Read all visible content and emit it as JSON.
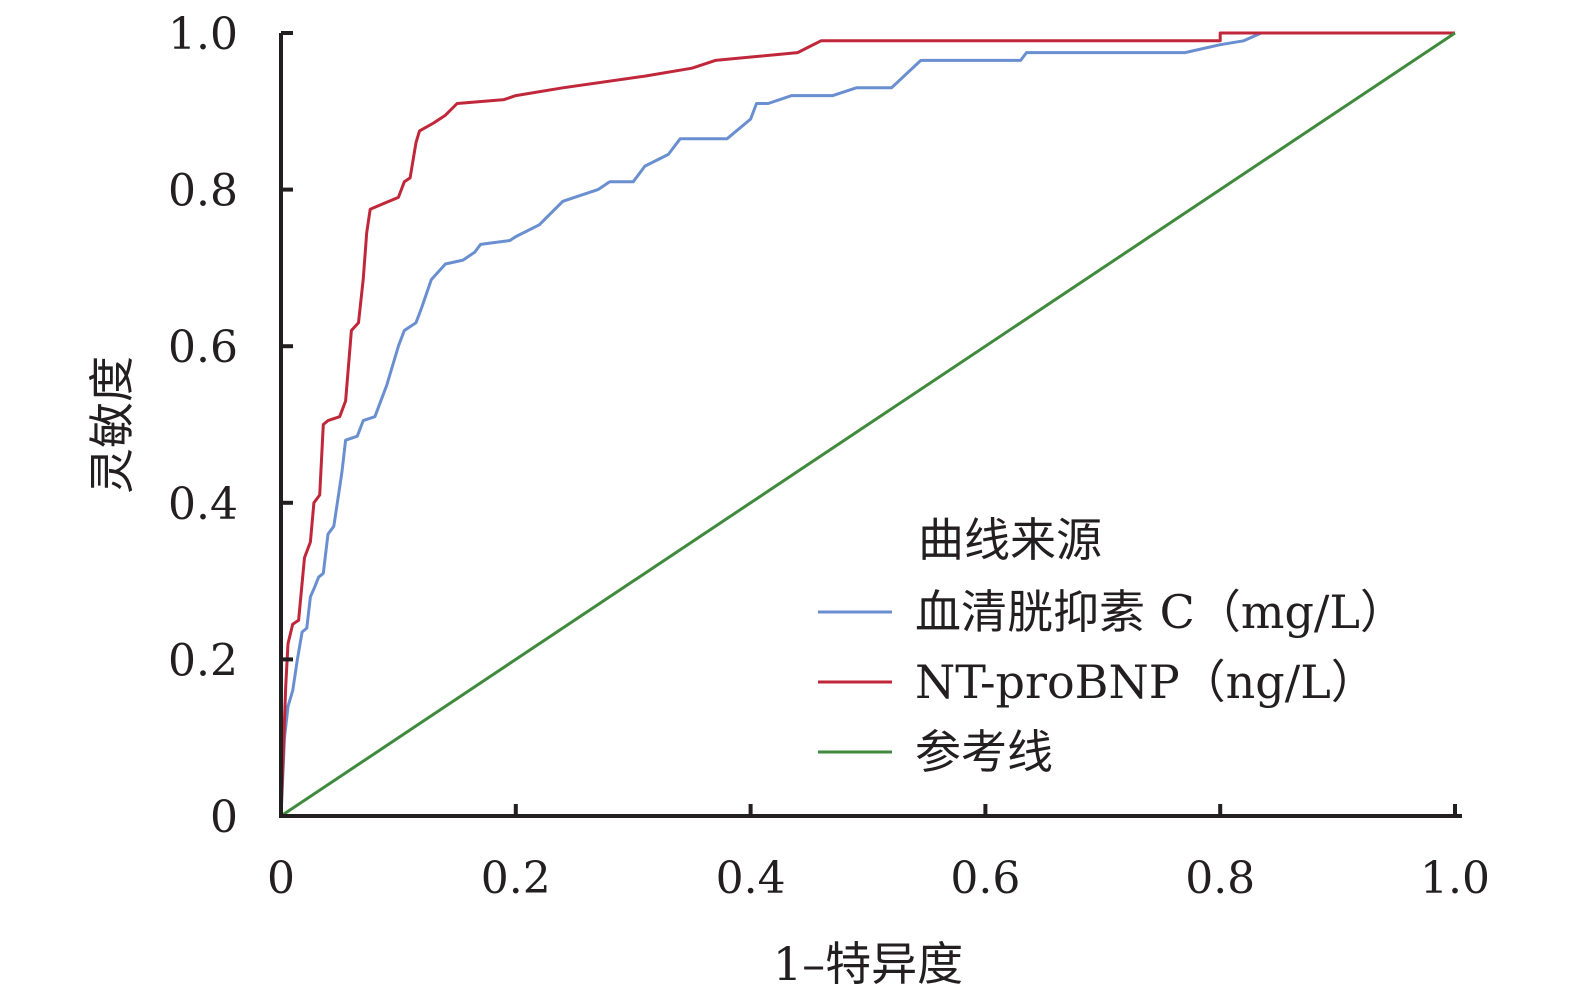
{
  "chart_data": {
    "type": "line",
    "xlabel": "1–特异度",
    "ylabel": "灵敏度",
    "xlim": [
      0,
      1.0
    ],
    "ylim": [
      0,
      1.0
    ],
    "x_ticks": [
      "0",
      "0.2",
      "0.4",
      "0.6",
      "0.8",
      "1.0"
    ],
    "y_ticks": [
      "0",
      "0.2",
      "0.4",
      "0.6",
      "0.8",
      "1.0"
    ],
    "grid": false,
    "legend": {
      "title": "曲线来源",
      "placement": "bottom-right"
    },
    "series": [
      {
        "name": "血清胱抑素 C（mg/L）",
        "color": "#6a8fd0",
        "points": [
          [
            0,
            0
          ],
          [
            0.003,
            0.1
          ],
          [
            0.006,
            0.14
          ],
          [
            0.01,
            0.16
          ],
          [
            0.014,
            0.2
          ],
          [
            0.018,
            0.235
          ],
          [
            0.022,
            0.24
          ],
          [
            0.025,
            0.28
          ],
          [
            0.028,
            0.29
          ],
          [
            0.032,
            0.305
          ],
          [
            0.036,
            0.31
          ],
          [
            0.04,
            0.36
          ],
          [
            0.045,
            0.37
          ],
          [
            0.05,
            0.42
          ],
          [
            0.052,
            0.44
          ],
          [
            0.055,
            0.48
          ],
          [
            0.065,
            0.485
          ],
          [
            0.07,
            0.505
          ],
          [
            0.08,
            0.51
          ],
          [
            0.09,
            0.55
          ],
          [
            0.1,
            0.6
          ],
          [
            0.105,
            0.62
          ],
          [
            0.115,
            0.63
          ],
          [
            0.12,
            0.65
          ],
          [
            0.128,
            0.685
          ],
          [
            0.14,
            0.705
          ],
          [
            0.155,
            0.71
          ],
          [
            0.165,
            0.72
          ],
          [
            0.17,
            0.73
          ],
          [
            0.195,
            0.735
          ],
          [
            0.2,
            0.74
          ],
          [
            0.22,
            0.755
          ],
          [
            0.24,
            0.785
          ],
          [
            0.27,
            0.8
          ],
          [
            0.28,
            0.81
          ],
          [
            0.3,
            0.81
          ],
          [
            0.31,
            0.83
          ],
          [
            0.33,
            0.845
          ],
          [
            0.34,
            0.865
          ],
          [
            0.38,
            0.865
          ],
          [
            0.4,
            0.89
          ],
          [
            0.405,
            0.91
          ],
          [
            0.415,
            0.91
          ],
          [
            0.435,
            0.92
          ],
          [
            0.47,
            0.92
          ],
          [
            0.49,
            0.93
          ],
          [
            0.52,
            0.93
          ],
          [
            0.545,
            0.965
          ],
          [
            0.63,
            0.965
          ],
          [
            0.635,
            0.975
          ],
          [
            0.77,
            0.975
          ],
          [
            0.8,
            0.985
          ],
          [
            0.82,
            0.99
          ],
          [
            0.835,
            1.0
          ],
          [
            1.0,
            1.0
          ]
        ]
      },
      {
        "name": "NT-proBNP（ng/L）",
        "color": "#c0273a",
        "points": [
          [
            0,
            0
          ],
          [
            0.004,
            0.165
          ],
          [
            0.006,
            0.22
          ],
          [
            0.01,
            0.245
          ],
          [
            0.015,
            0.25
          ],
          [
            0.02,
            0.33
          ],
          [
            0.025,
            0.35
          ],
          [
            0.028,
            0.4
          ],
          [
            0.033,
            0.41
          ],
          [
            0.036,
            0.5
          ],
          [
            0.04,
            0.505
          ],
          [
            0.05,
            0.51
          ],
          [
            0.055,
            0.53
          ],
          [
            0.06,
            0.62
          ],
          [
            0.066,
            0.63
          ],
          [
            0.07,
            0.685
          ],
          [
            0.073,
            0.745
          ],
          [
            0.076,
            0.775
          ],
          [
            0.1,
            0.79
          ],
          [
            0.105,
            0.81
          ],
          [
            0.11,
            0.815
          ],
          [
            0.115,
            0.86
          ],
          [
            0.118,
            0.875
          ],
          [
            0.13,
            0.885
          ],
          [
            0.14,
            0.895
          ],
          [
            0.15,
            0.91
          ],
          [
            0.19,
            0.915
          ],
          [
            0.2,
            0.92
          ],
          [
            0.24,
            0.93
          ],
          [
            0.31,
            0.945
          ],
          [
            0.35,
            0.955
          ],
          [
            0.37,
            0.965
          ],
          [
            0.44,
            0.975
          ],
          [
            0.46,
            0.99
          ],
          [
            0.8,
            0.99
          ],
          [
            0.8,
            1.0
          ],
          [
            1.0,
            1.0
          ]
        ]
      },
      {
        "name": "参考线",
        "color": "#3f8a3c",
        "points": [
          [
            0,
            0
          ],
          [
            1.0,
            1.0
          ]
        ]
      }
    ]
  }
}
